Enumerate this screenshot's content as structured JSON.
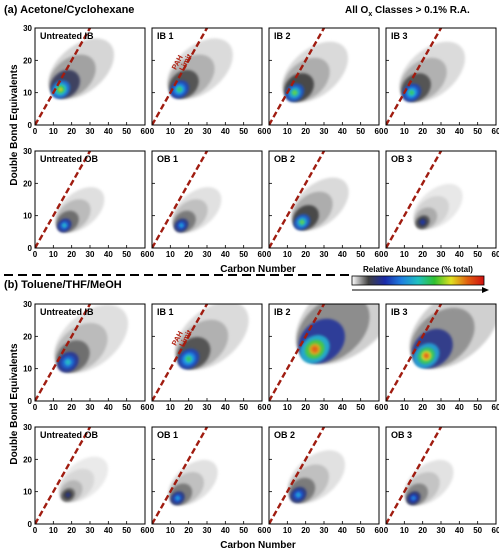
{
  "sections": [
    {
      "title": "(a) Acetone/Cyclohexane",
      "ylabel": "Double Bond Equivalents",
      "xlabel": "Carbon Number"
    },
    {
      "title": "(b) Toluene/THF/MeOH",
      "ylabel": "Double Bond Equivalents",
      "xlabel": "Carbon Number"
    }
  ],
  "top_note": {
    "prefix": "All  O",
    "sub": "x",
    "suffix": " Classes > 0.1% R.A."
  },
  "colorbar": {
    "label": "Relative Abundance (% total)",
    "colors": [
      "#ffffff",
      "#404040",
      "#1a2aa8",
      "#1f7fe0",
      "#20c0c0",
      "#30c030",
      "#e0e020",
      "#e06010",
      "#d01010"
    ]
  },
  "pah_label": [
    "PAH",
    "Limit"
  ],
  "chart_data": {
    "type": "heatmap",
    "xlim": [
      0,
      60
    ],
    "ylim": [
      0,
      30
    ],
    "x_ticks": [
      0,
      10,
      20,
      30,
      40,
      50,
      60
    ],
    "y_ticks": [
      0,
      10,
      20,
      30
    ],
    "pah_limit_line": {
      "x": [
        0,
        30
      ],
      "y": [
        0,
        30
      ]
    },
    "panels": [
      {
        "label": "Untreated IB",
        "group": "a",
        "hotspot": [
          14,
          11
        ],
        "spread": 0.8,
        "peak": 0.75
      },
      {
        "label": "IB 1",
        "group": "a",
        "hotspot": [
          15,
          11
        ],
        "spread": 0.8,
        "peak": 0.6
      },
      {
        "label": "IB 2",
        "group": "a",
        "hotspot": [
          14,
          10
        ],
        "spread": 0.8,
        "peak": 0.65
      },
      {
        "label": "IB 3",
        "group": "a",
        "hotspot": [
          14,
          10
        ],
        "spread": 0.8,
        "peak": 0.6
      },
      {
        "label": "Untreated OB",
        "group": "a",
        "hotspot": [
          16,
          7
        ],
        "spread": 0.6,
        "peak": 0.5
      },
      {
        "label": "OB 1",
        "group": "a",
        "hotspot": [
          16,
          7
        ],
        "spread": 0.6,
        "peak": 0.45
      },
      {
        "label": "OB 2",
        "group": "a",
        "hotspot": [
          18,
          8
        ],
        "spread": 0.7,
        "peak": 0.65
      },
      {
        "label": "OB 3",
        "group": "a",
        "hotspot": [
          20,
          8
        ],
        "spread": 0.6,
        "peak": 0.25
      },
      {
        "label": "Untreated IB",
        "group": "b",
        "hotspot": [
          18,
          12
        ],
        "spread": 0.9,
        "peak": 0.5
      },
      {
        "label": "IB 1",
        "group": "b",
        "hotspot": [
          20,
          13
        ],
        "spread": 0.9,
        "peak": 0.6
      },
      {
        "label": "IB 2",
        "group": "b",
        "hotspot": [
          25,
          16
        ],
        "spread": 1.25,
        "peak": 0.95
      },
      {
        "label": "IB 3",
        "group": "b",
        "hotspot": [
          22,
          14
        ],
        "spread": 1.1,
        "peak": 0.9
      },
      {
        "label": "Untreated OB",
        "group": "b",
        "hotspot": [
          18,
          9
        ],
        "spread": 0.6,
        "peak": 0.2
      },
      {
        "label": "OB 1",
        "group": "b",
        "hotspot": [
          14,
          8
        ],
        "spread": 0.6,
        "peak": 0.45
      },
      {
        "label": "OB 2",
        "group": "b",
        "hotspot": [
          16,
          9
        ],
        "spread": 0.7,
        "peak": 0.45
      },
      {
        "label": "OB 3",
        "group": "b",
        "hotspot": [
          15,
          8
        ],
        "spread": 0.6,
        "peak": 0.4
      }
    ]
  }
}
